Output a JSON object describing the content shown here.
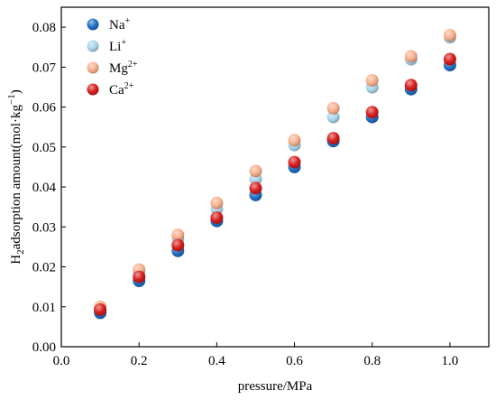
{
  "chart_data": {
    "type": "scatter",
    "title": "",
    "xlabel": "pressure/MPa",
    "ylabel": {
      "prefix": "H",
      "sub": "2",
      "main": "adsorption amount(mol·kg",
      "sup": "−1",
      "suffix": ")"
    },
    "xlim": [
      0.0,
      1.1
    ],
    "ylim": [
      0.0,
      0.085
    ],
    "xticks": [
      "0.0",
      "0.2",
      "0.4",
      "0.6",
      "0.8",
      "1.0"
    ],
    "yticks": [
      "0.00",
      "0.01",
      "0.02",
      "0.03",
      "0.04",
      "0.05",
      "0.06",
      "0.07",
      "0.08"
    ],
    "grid": false,
    "legend_position": "top-left",
    "x": [
      0.1,
      0.2,
      0.3,
      0.4,
      0.5,
      0.6,
      0.7,
      0.8,
      0.9,
      1.0
    ],
    "series": [
      {
        "name": "Li",
        "name_sup": "+",
        "color": "#a8d4ea",
        "values": [
          0.0095,
          0.0185,
          0.027,
          0.0345,
          0.042,
          0.0505,
          0.0575,
          0.065,
          0.072,
          0.0775
        ]
      },
      {
        "name": "Mg",
        "name_sup": "2+",
        "color": "#f7b08c",
        "values": [
          0.01,
          0.0193,
          0.028,
          0.036,
          0.044,
          0.0517,
          0.0597,
          0.0667,
          0.0727,
          0.078
        ]
      },
      {
        "name": "Na",
        "name_sup": "+",
        "color": "#1f6fc4",
        "values": [
          0.0085,
          0.0165,
          0.024,
          0.0315,
          0.038,
          0.045,
          0.0515,
          0.0575,
          0.0645,
          0.0705
        ]
      },
      {
        "name": "Ca",
        "name_sup": "2+",
        "color": "#d81c1c",
        "values": [
          0.0093,
          0.0175,
          0.0254,
          0.0323,
          0.0397,
          0.0462,
          0.0522,
          0.0587,
          0.0655,
          0.072
        ]
      }
    ],
    "legend_order": [
      2,
      0,
      1,
      3
    ]
  }
}
